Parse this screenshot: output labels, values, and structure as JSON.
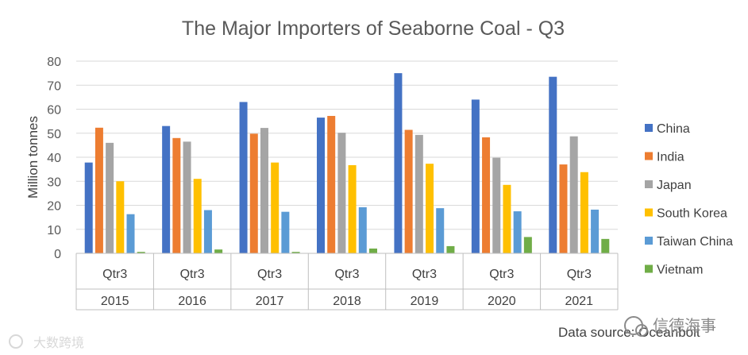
{
  "chart_data": {
    "type": "bar",
    "title": "The Major Importers of Seaborne Coal -  Q3",
    "ylabel": "Million tonnes",
    "xlabel": "",
    "ylim": [
      0,
      80
    ],
    "yticks": [
      0,
      10,
      20,
      30,
      40,
      50,
      60,
      70,
      80
    ],
    "grid": true,
    "legend_position": "right",
    "quarter_label": "Qtr3",
    "categories": [
      "2015",
      "2016",
      "2017",
      "2018",
      "2019",
      "2020",
      "2021"
    ],
    "series": [
      {
        "name": "China",
        "color": "#4472C4",
        "values": [
          37.8,
          53,
          63,
          56.5,
          75,
          64,
          73.5
        ]
      },
      {
        "name": "India",
        "color": "#ED7D31",
        "values": [
          52.3,
          48,
          49.8,
          57.2,
          51.4,
          48.3,
          37
        ]
      },
      {
        "name": "Japan",
        "color": "#A5A5A5",
        "values": [
          46,
          46.5,
          52.2,
          50.2,
          49.3,
          39.8,
          48.7
        ]
      },
      {
        "name": "South Korea",
        "color": "#FFC000",
        "values": [
          30,
          31,
          37.8,
          36.7,
          37.3,
          28.5,
          33.8
        ]
      },
      {
        "name": "Taiwan  China",
        "color": "#5B9BD5",
        "values": [
          16.3,
          18,
          17.3,
          19.2,
          18.8,
          17.5,
          18.2
        ]
      },
      {
        "name": "Vietnam",
        "color": "#70AD47",
        "values": [
          0.6,
          1.6,
          0.6,
          2,
          3,
          6.8,
          6
        ]
      }
    ],
    "source": "Data source: Oceanbolt"
  },
  "watermarks": {
    "left": "大数跨境",
    "right": "信德海事"
  }
}
